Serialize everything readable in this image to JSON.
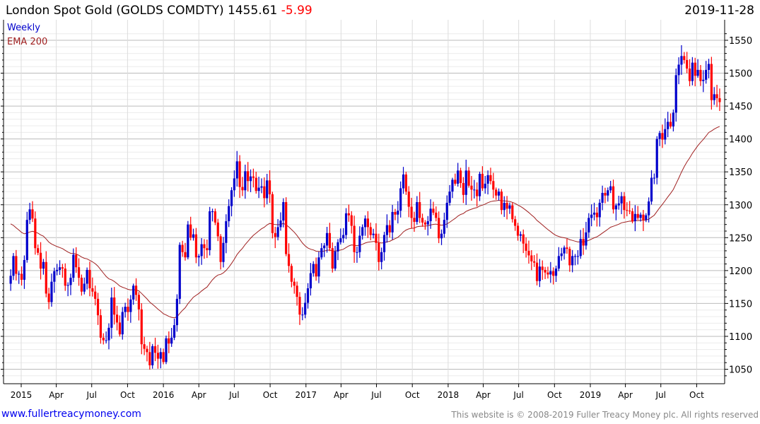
{
  "header": {
    "name": "London Spot Gold (GOLDS COMDTY)",
    "last": "1455.61",
    "change": "-5.99",
    "date": "2019-11-28"
  },
  "legend": {
    "period": "Weekly",
    "indicator": "EMA 200"
  },
  "footer": {
    "site": "www.fullertreacymoney.com",
    "copyright": "This website is © 2008-2019 Fuller Treacy Money plc. All rights reserved"
  },
  "colors": {
    "up": "#0000cc",
    "down": "#ff0000",
    "ema": "#a02020"
  },
  "chart_data": {
    "type": "candlestick",
    "title": "London Spot Gold (GOLDS COMDTY)",
    "frequency": "weekly",
    "first_week": "2014-12-05",
    "ylim": [
      1030,
      1560
    ],
    "y_ticks": [
      1050,
      1100,
      1150,
      1200,
      1250,
      1300,
      1350,
      1400,
      1450,
      1500,
      1550
    ],
    "x_ticks": [
      {
        "label": "2015",
        "date": "2015-01-01"
      },
      {
        "label": "Apr",
        "date": "2015-04-01"
      },
      {
        "label": "Jul",
        "date": "2015-07-01"
      },
      {
        "label": "Oct",
        "date": "2015-10-01"
      },
      {
        "label": "2016",
        "date": "2016-01-01"
      },
      {
        "label": "Apr",
        "date": "2016-04-01"
      },
      {
        "label": "Jul",
        "date": "2016-07-01"
      },
      {
        "label": "Oct",
        "date": "2016-10-01"
      },
      {
        "label": "2017",
        "date": "2017-01-01"
      },
      {
        "label": "Apr",
        "date": "2017-04-01"
      },
      {
        "label": "Jul",
        "date": "2017-07-01"
      },
      {
        "label": "Oct",
        "date": "2017-10-01"
      },
      {
        "label": "2018",
        "date": "2018-01-01"
      },
      {
        "label": "Apr",
        "date": "2018-04-01"
      },
      {
        "label": "Jul",
        "date": "2018-07-01"
      },
      {
        "label": "Oct",
        "date": "2018-10-01"
      },
      {
        "label": "2019",
        "date": "2019-01-01"
      },
      {
        "label": "Apr",
        "date": "2019-04-01"
      },
      {
        "label": "Jul",
        "date": "2019-07-01"
      },
      {
        "label": "Oct",
        "date": "2019-10-01"
      }
    ],
    "ema_seed": 1275,
    "closes": [
      1192,
      1222,
      1195,
      1195,
      1186,
      1216,
      1277,
      1293,
      1279,
      1234,
      1227,
      1203,
      1213,
      1165,
      1152,
      1183,
      1199,
      1201,
      1205,
      1203,
      1177,
      1178,
      1189,
      1224,
      1205,
      1189,
      1168,
      1180,
      1201,
      1173,
      1168,
      1157,
      1132,
      1098,
      1094,
      1094,
      1113,
      1159,
      1133,
      1121,
      1103,
      1137,
      1145,
      1137,
      1156,
      1177,
      1163,
      1141,
      1088,
      1081,
      1076,
      1056,
      1085,
      1075,
      1066,
      1076,
      1061,
      1097,
      1089,
      1098,
      1117,
      1157,
      1239,
      1228,
      1220,
      1270,
      1250,
      1255,
      1220,
      1222,
      1240,
      1234,
      1231,
      1290,
      1290,
      1273,
      1252,
      1213,
      1242,
      1275,
      1298,
      1322,
      1340,
      1366,
      1327,
      1322,
      1351,
      1336,
      1343,
      1341,
      1321,
      1326,
      1328,
      1310,
      1337,
      1316,
      1257,
      1251,
      1266,
      1276,
      1304,
      1225,
      1207,
      1183,
      1177,
      1160,
      1133,
      1133,
      1151,
      1173,
      1196,
      1210,
      1191,
      1220,
      1234,
      1238,
      1257,
      1234,
      1203,
      1229,
      1243,
      1249,
      1254,
      1287,
      1284,
      1268,
      1228,
      1228,
      1253,
      1266,
      1279,
      1266,
      1254,
      1256,
      1242,
      1213,
      1228,
      1254,
      1269,
      1258,
      1289,
      1285,
      1291,
      1325,
      1346,
      1320,
      1297,
      1280,
      1274,
      1304,
      1280,
      1273,
      1270,
      1275,
      1294,
      1288,
      1280,
      1249,
      1256,
      1277,
      1303,
      1320,
      1338,
      1332,
      1352,
      1333,
      1315,
      1352,
      1329,
      1323,
      1323,
      1313,
      1347,
      1325,
      1332,
      1345,
      1336,
      1323,
      1314,
      1320,
      1292,
      1303,
      1294,
      1299,
      1278,
      1268,
      1253,
      1255,
      1241,
      1230,
      1223,
      1214,
      1212,
      1184,
      1206,
      1201,
      1197,
      1194,
      1199,
      1192,
      1203,
      1222,
      1226,
      1235,
      1233,
      1208,
      1222,
      1222,
      1222,
      1248,
      1238,
      1258,
      1280,
      1285,
      1288,
      1281,
      1303,
      1318,
      1314,
      1322,
      1328,
      1293,
      1299,
      1302,
      1313,
      1292,
      1291,
      1290,
      1275,
      1286,
      1280,
      1285,
      1277,
      1284,
      1305,
      1341,
      1341,
      1400,
      1409,
      1399,
      1415,
      1426,
      1419,
      1440,
      1497,
      1513,
      1526,
      1520,
      1507,
      1488,
      1516,
      1496,
      1505,
      1488,
      1490,
      1505,
      1514,
      1459,
      1468,
      1462,
      1456
    ]
  }
}
